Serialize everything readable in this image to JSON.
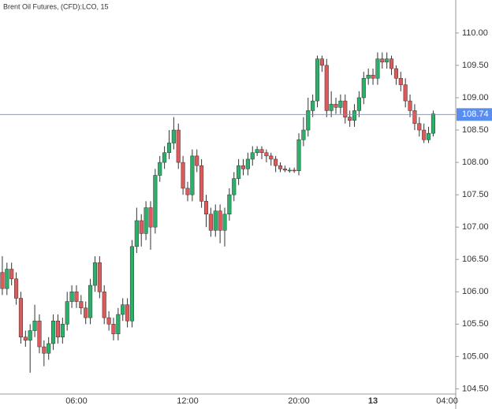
{
  "chart_data": {
    "type": "candlestick",
    "title": "Brent Oil Futures, (CFD):LCO, 15",
    "categories": [
      null,
      null,
      null,
      null,
      null,
      null,
      null,
      null,
      null,
      null,
      null,
      null,
      null,
      null,
      null,
      null,
      "06:00",
      null,
      null,
      null,
      null,
      null,
      null,
      null,
      null,
      null,
      null,
      null,
      null,
      null,
      null,
      null,
      null,
      null,
      null,
      null,
      null,
      null,
      null,
      null,
      "12:00",
      null,
      null,
      null,
      null,
      null,
      null,
      null,
      null,
      null,
      null,
      null,
      null,
      null,
      null,
      null,
      null,
      null,
      null,
      null,
      null,
      null,
      null,
      null,
      "20:00",
      null,
      null,
      null,
      null,
      null,
      null,
      null,
      null,
      null,
      null,
      null,
      null,
      null,
      null,
      null,
      "13",
      null,
      null,
      null,
      null,
      null,
      null,
      null,
      null,
      null,
      null,
      null,
      null,
      null,
      null,
      null,
      "04:00"
    ],
    "open": [
      106.3,
      106.05,
      106.35,
      106.2,
      105.9,
      105.3,
      105.25,
      105.4,
      105.55,
      105.15,
      105.05,
      105.2,
      105.55,
      105.3,
      105.5,
      105.85,
      106.0,
      105.85,
      105.75,
      105.6,
      106.1,
      106.45,
      106.0,
      105.6,
      105.5,
      105.35,
      105.65,
      105.8,
      105.55,
      106.7,
      107.1,
      106.9,
      107.3,
      107.0,
      107.8,
      108.0,
      108.15,
      108.3,
      108.5,
      108.0,
      107.6,
      107.5,
      108.1,
      107.95,
      107.4,
      107.2,
      106.95,
      107.25,
      106.95,
      107.2,
      107.5,
      107.75,
      107.95,
      107.9,
      108.05,
      108.15,
      108.2,
      108.15,
      108.1,
      108.05,
      107.95,
      107.9,
      107.88,
      107.88,
      107.87,
      108.35,
      108.5,
      108.8,
      108.95,
      109.6,
      109.5,
      108.8,
      108.9,
      108.85,
      108.95,
      108.7,
      108.65,
      108.8,
      109.0,
      109.3,
      109.35,
      109.3,
      109.6,
      109.55,
      109.6,
      109.45,
      109.3,
      109.2,
      108.95,
      108.8,
      108.6,
      108.5,
      108.35,
      108.45,
      null,
      null,
      null
    ],
    "high": [
      106.55,
      106.45,
      106.45,
      106.3,
      106.0,
      105.4,
      105.5,
      105.8,
      105.65,
      105.25,
      105.3,
      105.65,
      105.65,
      105.6,
      106.0,
      106.1,
      106.1,
      105.95,
      105.85,
      106.2,
      106.55,
      106.55,
      106.1,
      105.7,
      105.6,
      105.75,
      105.9,
      105.9,
      106.8,
      107.3,
      107.2,
      107.4,
      107.4,
      107.9,
      108.1,
      108.25,
      108.5,
      108.7,
      108.6,
      108.1,
      107.7,
      108.2,
      108.2,
      108.05,
      107.5,
      107.3,
      107.35,
      107.35,
      107.3,
      107.6,
      107.85,
      108.05,
      108.05,
      108.15,
      108.25,
      108.25,
      108.25,
      108.2,
      108.15,
      108.1,
      108.0,
      107.95,
      107.92,
      107.92,
      108.45,
      108.7,
      109.0,
      109.05,
      109.65,
      109.65,
      109.6,
      109.1,
      109.0,
      109.05,
      109.05,
      108.8,
      108.9,
      109.1,
      109.4,
      109.45,
      109.45,
      109.7,
      109.7,
      109.7,
      109.65,
      109.5,
      109.4,
      109.3,
      109.05,
      108.9,
      108.7,
      108.6,
      108.55,
      108.8,
      null,
      null,
      null
    ],
    "low": [
      105.95,
      105.95,
      106.1,
      105.8,
      105.2,
      105.15,
      104.75,
      105.3,
      105.05,
      104.85,
      104.95,
      105.1,
      105.2,
      105.2,
      105.4,
      105.75,
      105.75,
      105.65,
      105.5,
      105.5,
      106.0,
      105.9,
      105.5,
      105.4,
      105.25,
      105.25,
      105.55,
      105.45,
      105.45,
      106.6,
      106.7,
      106.8,
      106.65,
      106.9,
      107.7,
      107.9,
      108.05,
      108.2,
      107.9,
      107.5,
      107.4,
      107.4,
      107.85,
      107.3,
      107.0,
      106.85,
      106.85,
      106.75,
      106.7,
      107.1,
      107.4,
      107.65,
      107.8,
      107.8,
      107.95,
      108.1,
      108.05,
      108.0,
      107.95,
      107.85,
      107.85,
      107.85,
      107.84,
      107.84,
      107.8,
      108.25,
      108.4,
      108.7,
      108.85,
      109.4,
      108.7,
      108.7,
      108.75,
      108.75,
      108.6,
      108.55,
      108.55,
      108.7,
      108.9,
      109.2,
      109.2,
      109.2,
      109.45,
      109.45,
      109.35,
      109.2,
      109.1,
      108.85,
      108.7,
      108.5,
      108.4,
      108.3,
      108.3,
      108.4,
      null,
      null,
      null
    ],
    "close": [
      106.05,
      106.35,
      106.2,
      105.9,
      105.3,
      105.25,
      105.4,
      105.55,
      105.15,
      105.05,
      105.2,
      105.55,
      105.3,
      105.5,
      105.85,
      106.0,
      105.85,
      105.75,
      105.6,
      106.1,
      106.45,
      106.0,
      105.6,
      105.5,
      105.35,
      105.65,
      105.8,
      105.55,
      106.7,
      107.1,
      106.9,
      107.3,
      107.0,
      107.8,
      108.0,
      108.15,
      108.3,
      108.5,
      108.0,
      107.6,
      107.5,
      108.1,
      107.95,
      107.4,
      107.2,
      106.95,
      107.25,
      106.95,
      107.2,
      107.5,
      107.75,
      107.95,
      107.9,
      108.05,
      108.15,
      108.2,
      108.15,
      108.1,
      108.05,
      107.95,
      107.9,
      107.88,
      107.88,
      107.87,
      108.35,
      108.5,
      108.8,
      108.95,
      109.6,
      109.5,
      108.8,
      108.9,
      108.85,
      108.95,
      108.7,
      108.65,
      108.8,
      109.0,
      109.3,
      109.35,
      109.3,
      109.6,
      109.55,
      109.6,
      109.45,
      109.3,
      109.2,
      108.95,
      108.8,
      108.6,
      108.5,
      108.35,
      108.45,
      108.75,
      null,
      null,
      null
    ],
    "up_color": "#2bb06a",
    "down_color": "#dc5a5a",
    "last_price": 108.74,
    "last_price_color": "#5b8def",
    "ylim": [
      104.42,
      110.51
    ],
    "yticks": [
      {
        "value": 104.5,
        "label": "104.50"
      },
      {
        "value": 105,
        "label": "105.00"
      },
      {
        "value": 105.5,
        "label": "105.50"
      },
      {
        "value": 106,
        "label": "106.00"
      },
      {
        "value": 106.5,
        "label": "106.50"
      },
      {
        "value": 107,
        "label": "107.00"
      },
      {
        "value": 107.5,
        "label": "107.50"
      },
      {
        "value": 108,
        "label": "108.00"
      },
      {
        "value": 108.5,
        "label": "108.50"
      },
      {
        "value": 109,
        "label": "109.00"
      },
      {
        "value": 109.5,
        "label": "109.50"
      },
      {
        "value": 110,
        "label": "110.00"
      }
    ]
  }
}
